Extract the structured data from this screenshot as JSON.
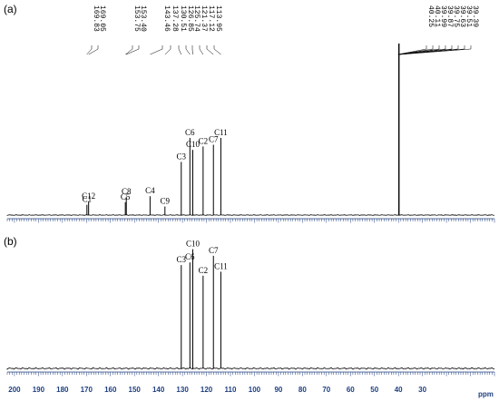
{
  "chart_data": [
    {
      "type": "line",
      "panel_label": "(a)",
      "shift_labels": [
        "169.83",
        "169.05",
        "153.75",
        "153.40",
        "143.46",
        "137.28",
        "130.51",
        "126.85",
        "125.74",
        "121.37",
        "117.12",
        "113.95",
        "40.25",
        "40.11",
        "39.99",
        "39.87",
        "39.75",
        "39.63",
        "39.51",
        "39.39"
      ],
      "peaks": [
        {
          "label": "C1",
          "ppm": 169.8,
          "height": 0.06
        },
        {
          "label": "C12",
          "ppm": 169.1,
          "height": 0.08
        },
        {
          "label": "C5",
          "ppm": 153.8,
          "height": 0.075
        },
        {
          "label": "C8",
          "ppm": 153.4,
          "height": 0.105
        },
        {
          "label": "C4",
          "ppm": 143.5,
          "height": 0.11
        },
        {
          "label": "C9",
          "ppm": 137.3,
          "height": 0.05
        },
        {
          "label": "C3",
          "ppm": 130.5,
          "height": 0.31
        },
        {
          "label": "C6",
          "ppm": 126.9,
          "height": 0.45
        },
        {
          "label": "C10",
          "ppm": 125.7,
          "height": 0.38
        },
        {
          "label": "C2",
          "ppm": 121.4,
          "height": 0.4
        },
        {
          "label": "C7",
          "ppm": 117.1,
          "height": 0.41
        },
        {
          "label": "C11",
          "ppm": 114.0,
          "height": 0.45
        },
        {
          "label": "",
          "ppm": 39.8,
          "height": 1.0
        }
      ]
    },
    {
      "type": "line",
      "panel_label": "(b)",
      "peaks": [
        {
          "label": "C3",
          "ppm": 130.5,
          "height": 0.78
        },
        {
          "label": "C6",
          "ppm": 126.9,
          "height": 0.8
        },
        {
          "label": "C10",
          "ppm": 125.7,
          "height": 0.9
        },
        {
          "label": "C2",
          "ppm": 121.4,
          "height": 0.7
        },
        {
          "label": "C7",
          "ppm": 117.1,
          "height": 0.85
        },
        {
          "label": "C11",
          "ppm": 114.0,
          "height": 0.73
        }
      ]
    }
  ],
  "x_axis": {
    "ticks": [
      200,
      190,
      180,
      170,
      160,
      150,
      140,
      130,
      120,
      110,
      100,
      90,
      80,
      70,
      60,
      50,
      40,
      30
    ],
    "label": "ppm",
    "range": [
      203,
      0
    ]
  },
  "colors": {
    "spectrum": "#000000",
    "axis": "#1f3f7f"
  }
}
